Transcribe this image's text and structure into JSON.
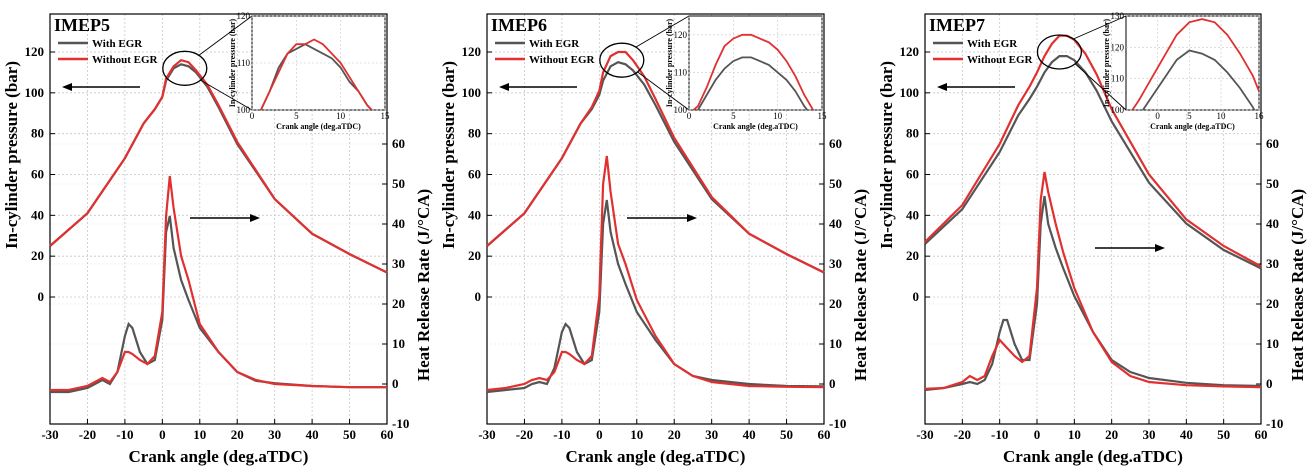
{
  "colors": {
    "with_egr": "#555555",
    "without_egr": "#e03030",
    "grid": "#c8c8c8",
    "axis": "#000000"
  },
  "legend": {
    "with_egr": "With EGR",
    "without_egr": "Without EGR"
  },
  "axis_titles": {
    "x": "Crank angle (deg.aTDC)",
    "y_left": "In-cylinder pressure (bar)",
    "y_right": "Heat Release Rate (J/°CA)",
    "inset_x": "Crank angle (deg.aTDC)",
    "inset_y": "In-cylinder pressure (bar)"
  },
  "chart_data": [
    {
      "type": "line",
      "title": "IMEP5",
      "xlabel": "Crank angle (deg.aTDC)",
      "ylabel": "In-cylinder pressure (bar)",
      "y2label": "Heat Release Rate (J/°CA)",
      "xlim": [
        -30,
        60
      ],
      "ylim": [
        0,
        130
      ],
      "y2lim": [
        -10,
        70
      ],
      "xticks": [
        "-30",
        "-20",
        "-10",
        "0",
        "10",
        "20",
        "30",
        "40",
        "50",
        "60"
      ],
      "yticks": [
        "0",
        "20",
        "40",
        "60",
        "80",
        "100",
        "120"
      ],
      "y2ticks": [
        "-10",
        "0",
        "10",
        "20",
        "30",
        "40",
        "50",
        "60"
      ],
      "pressure": {
        "with_egr": {
          "x": [
            -30,
            -20,
            -10,
            -5,
            -2,
            0,
            1,
            3,
            5,
            7,
            9,
            12,
            15,
            20,
            30,
            40,
            50,
            60
          ],
          "y": [
            25,
            41,
            68,
            85,
            92,
            98,
            106,
            112,
            114,
            113,
            110,
            103,
            93,
            75,
            48,
            31,
            21,
            12
          ]
        },
        "without_egr": {
          "x": [
            -30,
            -20,
            -10,
            -5,
            -2,
            0,
            1,
            3,
            5,
            7,
            9,
            12,
            15,
            20,
            30,
            40,
            50,
            60
          ],
          "y": [
            25,
            41,
            68,
            85,
            92,
            98,
            107,
            113,
            116,
            115,
            111,
            104,
            94,
            76,
            48,
            31,
            21,
            12
          ]
        }
      },
      "hrr": {
        "with_egr": {
          "x": [
            -30,
            -25,
            -20,
            -18,
            -16,
            -14,
            -12,
            -10,
            -9,
            -8,
            -6,
            -4,
            -2,
            0,
            1,
            2,
            3,
            5,
            7,
            10,
            15,
            20,
            25,
            30,
            40,
            50,
            60
          ],
          "y": [
            -2,
            -2,
            -1,
            0,
            1,
            0,
            3,
            12,
            15,
            14,
            8,
            5,
            6,
            16,
            38,
            42,
            34,
            26,
            21,
            14,
            8,
            3,
            0.8,
            0.2,
            -0.5,
            -0.8,
            -0.8
          ]
        },
        "without_egr": {
          "x": [
            -30,
            -25,
            -20,
            -18,
            -16,
            -14,
            -12,
            -10,
            -9,
            -8,
            -6,
            -4,
            -2,
            0,
            1,
            2,
            3,
            5,
            7,
            10,
            15,
            20,
            25,
            30,
            40,
            50,
            60
          ],
          "y": [
            -1.5,
            -1.5,
            -0.5,
            0.5,
            1.5,
            0.5,
            3,
            8,
            8,
            7.5,
            6,
            5,
            7,
            18,
            42,
            52,
            44,
            32,
            26,
            15,
            8,
            3,
            1,
            0,
            -0.5,
            -0.8,
            -0.8
          ]
        }
      },
      "inset": {
        "xlim": [
          0,
          15
        ],
        "ylim": [
          100,
          120
        ],
        "xticks": [
          "0",
          "5",
          "10",
          "15"
        ],
        "yticks": [
          "100",
          "110",
          "120"
        ],
        "with_egr": {
          "x": [
            0,
            1,
            2,
            3,
            4,
            5,
            6,
            7,
            8,
            9,
            10,
            11,
            12,
            13,
            14
          ],
          "y": [
            98,
            100,
            104,
            109,
            112,
            113,
            114,
            113,
            112,
            111,
            109,
            106,
            104,
            101,
            99
          ]
        },
        "without_egr": {
          "x": [
            0,
            1,
            2,
            3,
            4,
            5,
            6,
            7,
            8,
            9,
            10,
            11,
            12,
            13,
            14
          ],
          "y": [
            98,
            100,
            104,
            108,
            112,
            114,
            114,
            115,
            114,
            112,
            110,
            107,
            104,
            101,
            99
          ]
        }
      }
    },
    {
      "type": "line",
      "title": "IMEP6",
      "xlabel": "Crank angle (deg.aTDC)",
      "ylabel": "In-cylinder pressure (bar)",
      "y2label": "Heat Release Rate (J/°CA)",
      "xlim": [
        -30,
        60
      ],
      "ylim": [
        0,
        130
      ],
      "y2lim": [
        -10,
        70
      ],
      "xticks": [
        "-30",
        "-20",
        "-10",
        "0",
        "10",
        "20",
        "30",
        "40",
        "50",
        "60"
      ],
      "yticks": [
        "0",
        "20",
        "40",
        "60",
        "80",
        "100",
        "120"
      ],
      "y2ticks": [
        "-10",
        "0",
        "10",
        "20",
        "30",
        "40",
        "50",
        "60"
      ],
      "pressure": {
        "with_egr": {
          "x": [
            -30,
            -20,
            -10,
            -5,
            -2,
            0,
            1,
            3,
            5,
            7,
            9,
            12,
            15,
            20,
            30,
            40,
            50,
            60
          ],
          "y": [
            25,
            41,
            68,
            85,
            92,
            99,
            106,
            113,
            115,
            114,
            111,
            104,
            94,
            76,
            48,
            31,
            21,
            12
          ]
        },
        "without_egr": {
          "x": [
            -30,
            -20,
            -10,
            -5,
            -2,
            0,
            1,
            3,
            5,
            7,
            9,
            12,
            15,
            20,
            30,
            40,
            50,
            60
          ],
          "y": [
            25,
            41,
            68,
            85,
            93,
            101,
            110,
            118,
            120,
            120,
            116,
            108,
            97,
            78,
            49,
            31,
            21,
            12
          ]
        }
      },
      "hrr": {
        "with_egr": {
          "x": [
            -30,
            -25,
            -20,
            -18,
            -16,
            -14,
            -12,
            -10,
            -9,
            -8,
            -6,
            -4,
            -2,
            0,
            1,
            2,
            3,
            5,
            7,
            10,
            15,
            20,
            25,
            30,
            40,
            50,
            60
          ],
          "y": [
            -2,
            -1.5,
            -1,
            0,
            0.5,
            0,
            4,
            13,
            15,
            14,
            8,
            5,
            6,
            18,
            40,
            46,
            38,
            30,
            25,
            18,
            11,
            5,
            2,
            1,
            0,
            -0.5,
            -0.6
          ]
        },
        "without_egr": {
          "x": [
            -30,
            -25,
            -20,
            -18,
            -16,
            -14,
            -12,
            -10,
            -9,
            -8,
            -6,
            -4,
            -2,
            0,
            1,
            2,
            3,
            5,
            7,
            10,
            15,
            20,
            25,
            30,
            40,
            50,
            60
          ],
          "y": [
            -1.5,
            -1,
            0,
            1,
            1.5,
            1,
            3,
            8,
            8,
            7.5,
            6,
            5,
            7,
            22,
            50,
            57,
            48,
            35,
            30,
            21,
            12,
            5,
            2,
            0.5,
            -0.5,
            -0.7,
            -0.8
          ]
        }
      },
      "inset": {
        "xlim": [
          0,
          15
        ],
        "ylim": [
          100,
          125
        ],
        "xticks": [
          "0",
          "5",
          "10",
          "15"
        ],
        "yticks": [
          "100",
          "110",
          "120"
        ],
        "with_egr": {
          "x": [
            0,
            1,
            2,
            3,
            4,
            5,
            6,
            7,
            8,
            9,
            10,
            11,
            12,
            13,
            14
          ],
          "y": [
            98,
            100,
            104,
            108,
            111,
            113,
            114,
            114,
            113,
            112,
            110,
            108,
            105,
            101,
            98
          ]
        },
        "without_egr": {
          "x": [
            0,
            1,
            2,
            3,
            4,
            5,
            6,
            7,
            8,
            9,
            10,
            11,
            12,
            13,
            14
          ],
          "y": [
            99,
            101,
            106,
            112,
            117,
            119,
            120,
            120,
            119,
            118,
            116,
            113,
            109,
            104,
            100
          ]
        }
      }
    },
    {
      "type": "line",
      "title": "IMEP7",
      "xlabel": "Crank angle (deg.aTDC)",
      "ylabel": "In-cylinder pressure (bar)",
      "y2label": "Heat Release Rate (J/°CA)",
      "xlim": [
        -30,
        60
      ],
      "ylim": [
        0,
        130
      ],
      "y2lim": [
        -10,
        70
      ],
      "xticks": [
        "-30",
        "-20",
        "-10",
        "0",
        "10",
        "20",
        "30",
        "40",
        "50",
        "60"
      ],
      "yticks": [
        "0",
        "20",
        "40",
        "60",
        "80",
        "100",
        "120"
      ],
      "y2ticks": [
        "-10",
        "0",
        "10",
        "20",
        "30",
        "40",
        "50",
        "60"
      ],
      "pressure": {
        "with_egr": {
          "x": [
            -30,
            -20,
            -10,
            -5,
            -2,
            0,
            2,
            4,
            6,
            8,
            10,
            13,
            16,
            20,
            30,
            40,
            50,
            60
          ],
          "y": [
            26,
            43,
            71,
            89,
            97,
            103,
            110,
            115,
            118,
            118,
            116,
            110,
            101,
            86,
            56,
            36,
            23,
            14
          ]
        },
        "without_egr": {
          "x": [
            -30,
            -20,
            -10,
            -5,
            -2,
            0,
            2,
            4,
            6,
            8,
            10,
            13,
            16,
            20,
            30,
            40,
            50,
            60
          ],
          "y": [
            27,
            45,
            75,
            94,
            103,
            110,
            118,
            124,
            128,
            128,
            126,
            119,
            109,
            92,
            60,
            38,
            25,
            15
          ]
        }
      },
      "hrr": {
        "with_egr": {
          "x": [
            -30,
            -25,
            -20,
            -18,
            -16,
            -14,
            -12,
            -10,
            -9,
            -8,
            -6,
            -4,
            -2,
            0,
            1,
            2,
            3,
            5,
            7,
            10,
            15,
            20,
            25,
            30,
            40,
            50,
            60
          ],
          "y": [
            -1.5,
            -1,
            0,
            0.5,
            0,
            1,
            5,
            13,
            16,
            16,
            10,
            6,
            6,
            20,
            40,
            47,
            40,
            34,
            29,
            22,
            13,
            6,
            3,
            1.5,
            0.3,
            -0.3,
            -0.5
          ]
        },
        "without_egr": {
          "x": [
            -30,
            -25,
            -20,
            -18,
            -16,
            -14,
            -12,
            -10,
            -9,
            -8,
            -6,
            -4,
            -2,
            0,
            1,
            2,
            3,
            5,
            7,
            10,
            15,
            20,
            25,
            30,
            40,
            50,
            60
          ],
          "y": [
            -1.2,
            -1,
            0.5,
            2,
            1,
            2,
            7,
            11,
            10,
            9,
            7,
            5.5,
            7,
            24,
            46,
            53,
            48,
            40,
            33,
            24,
            13,
            5.5,
            2,
            0.5,
            -0.3,
            -0.6,
            -0.8
          ]
        }
      },
      "inset": {
        "xlim": [
          -5,
          16
        ],
        "ylim": [
          100,
          130
        ],
        "xticks": [
          "0",
          "5",
          "10",
          "16"
        ],
        "yticks": [
          "100",
          "110",
          "120",
          "130"
        ],
        "with_egr": {
          "x": [
            -5,
            -3,
            -1,
            1,
            3,
            5,
            7,
            9,
            11,
            13,
            15,
            16
          ],
          "y": [
            92,
            98,
            104,
            110,
            116,
            119,
            118,
            116,
            112,
            107,
            101,
            97
          ]
        },
        "without_egr": {
          "x": [
            -5,
            -3,
            -1,
            1,
            3,
            5,
            7,
            9,
            11,
            13,
            15,
            16
          ],
          "y": [
            97,
            103,
            110,
            117,
            124,
            128,
            129,
            128,
            124,
            118,
            111,
            106
          ]
        }
      }
    }
  ]
}
